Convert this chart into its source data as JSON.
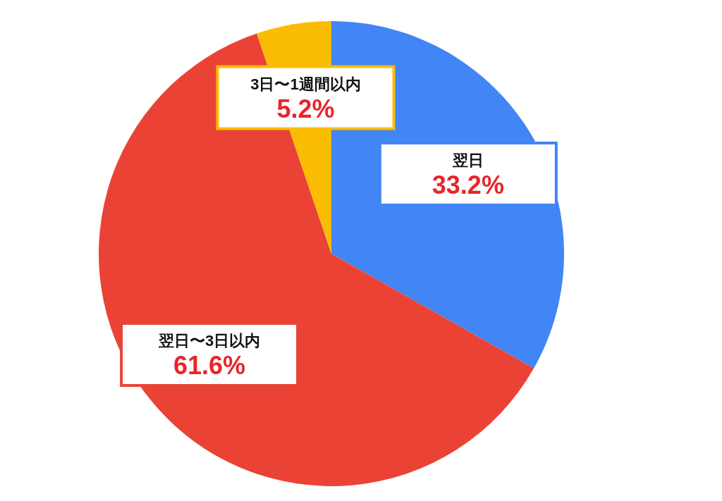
{
  "chart_data": {
    "type": "pie",
    "categories": [
      "翌日",
      "翌日〜3日以内",
      "3日〜1週間以内"
    ],
    "values": [
      33.2,
      61.6,
      5.2
    ],
    "colors": [
      "#4285f4",
      "#ea4335",
      "#fbbc04"
    ],
    "value_labels": [
      "33.2%",
      "61.6%",
      "5.2%"
    ]
  }
}
